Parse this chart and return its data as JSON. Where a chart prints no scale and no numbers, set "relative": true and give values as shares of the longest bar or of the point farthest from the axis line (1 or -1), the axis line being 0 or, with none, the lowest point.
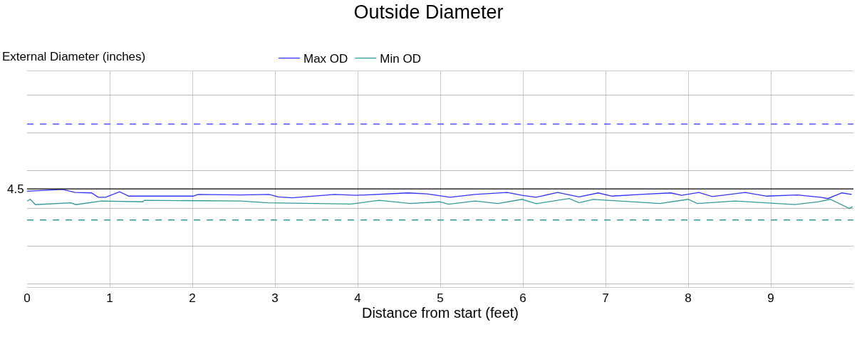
{
  "chart_data": {
    "type": "line",
    "title": "Outside Diameter",
    "xlabel": "Distance from start (feet)",
    "annotations": [
      "External Diameter (inches)",
      "4.5"
    ],
    "relative": true,
    "xlim": [
      0,
      10
    ],
    "xticks": [
      0,
      1,
      2,
      3,
      4,
      5,
      6,
      7,
      8,
      9
    ],
    "grid": true,
    "legend": "top",
    "marker": "none",
    "line_style": "solid",
    "series": [
      {
        "name": "Max OD",
        "color": "#3333ff",
        "x": [
          0,
          0.43,
          0.58,
          0.78,
          0.86,
          0.95,
          1.12,
          1.23,
          2.01,
          2.07,
          2.58,
          2.93,
          3.04,
          3.21,
          3.72,
          3.98,
          4.61,
          4.84,
          5.12,
          5.42,
          5.81,
          5.99,
          6.16,
          6.42,
          6.68,
          6.91,
          7.08,
          7.42,
          7.79,
          7.92,
          8.13,
          8.29,
          8.69,
          8.95,
          9.32,
          9.6,
          9.69,
          9.86,
          9.98
        ],
        "values": [
          0.91,
          1.0,
          0.84,
          0.82,
          0.59,
          0.59,
          0.88,
          0.65,
          0.65,
          0.74,
          0.71,
          0.74,
          0.61,
          0.56,
          0.74,
          0.69,
          0.82,
          0.77,
          0.59,
          0.74,
          0.84,
          0.69,
          0.59,
          0.84,
          0.61,
          0.82,
          0.65,
          0.74,
          0.82,
          0.69,
          0.84,
          0.63,
          0.84,
          0.65,
          0.71,
          0.59,
          0.52,
          0.82,
          0.74
        ]
      },
      {
        "name": "Min OD",
        "color": "#339999",
        "x": [
          0,
          0.04,
          0.1,
          0.53,
          0.59,
          0.9,
          1.4,
          1.42,
          2.58,
          2.92,
          3.92,
          4.26,
          4.64,
          4.99,
          5.1,
          5.42,
          5.7,
          5.99,
          6.16,
          6.56,
          6.68,
          6.85,
          7.66,
          8.0,
          8.11,
          8.57,
          9.29,
          9.58,
          9.72,
          9.95,
          9.99
        ],
        "values": [
          0.39,
          0.48,
          0.2,
          0.3,
          0.2,
          0.39,
          0.35,
          0.43,
          0.39,
          0.3,
          0.23,
          0.43,
          0.26,
          0.35,
          0.22,
          0.39,
          0.26,
          0.48,
          0.25,
          0.52,
          0.3,
          0.48,
          0.26,
          0.48,
          0.26,
          0.39,
          0.2,
          0.35,
          0.48,
          0.0,
          0.09
        ]
      }
    ],
    "ref_lines": [
      {
        "axis": "y",
        "value": 4.46,
        "color": "#3333ff",
        "line_style": "dashed"
      },
      {
        "axis": "y",
        "value": -0.61,
        "color": "#339999",
        "line_style": "dashed"
      },
      {
        "axis": "y",
        "value": 1.03,
        "color": "#000000",
        "line_style": "solid"
      }
    ]
  }
}
